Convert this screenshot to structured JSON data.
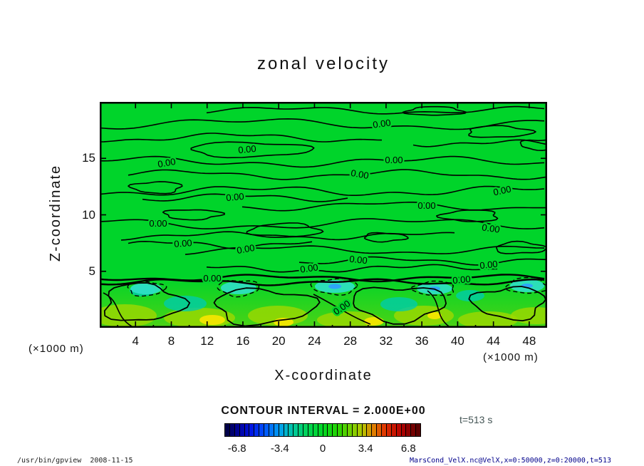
{
  "title": "zonal velocity",
  "plot": {
    "contour_label": "0.00",
    "x_axis": {
      "label": "X-coordinate",
      "unit": "(×1000 m)",
      "ticks": [
        "4",
        "8",
        "12",
        "16",
        "20",
        "24",
        "28",
        "32",
        "36",
        "40",
        "44",
        "48"
      ]
    },
    "y_axis": {
      "label": "Z-coordinate",
      "unit": "(×1000 m)",
      "ticks": [
        "5",
        "10",
        "15"
      ]
    }
  },
  "contour_info": "CONTOUR INTERVAL = 2.000E+00",
  "colorbar": {
    "ticks": [
      "-6.8",
      "-3.4",
      "0",
      "3.4",
      "6.8"
    ]
  },
  "time_label": "t=513 s",
  "footer": {
    "left": "/usr/bin/gpview  2008-11-15",
    "right": "MarsCond_VelX.nc@VelX,x=0:50000,z=0:20000,t=513"
  },
  "chart_data": {
    "type": "heatmap",
    "subtype": "filled-contour",
    "title": "zonal velocity",
    "xlabel": "X-coordinate (×1000 m)",
    "ylabel": "Z-coordinate (×1000 m)",
    "xlim": [
      0,
      50
    ],
    "ylim": [
      0,
      20
    ],
    "xticks": [
      4,
      8,
      12,
      16,
      20,
      24,
      28,
      32,
      36,
      40,
      44,
      48
    ],
    "yticks": [
      5,
      10,
      15
    ],
    "contour_interval": 2.0,
    "visible_contour_level": 0.0,
    "colorbar_ticks": [
      -6.8,
      -3.4,
      0,
      3.4,
      6.8
    ],
    "colorbar_range": [
      -7.8,
      7.8
    ],
    "time": 513,
    "time_units": "s",
    "palette": {
      "zero_green": "#00d42a",
      "negative_extreme": "#000038",
      "positive_extreme": "#500000",
      "negative_patch_cyan": "#30e0c8",
      "positive_patch_yellow": "#ffe800"
    },
    "field_description": "near-zero zonal velocity aloft (uniform green, many 0.00 contours); wave-like positive/negative perturbations confined below z≈4 (×1000 m)"
  }
}
